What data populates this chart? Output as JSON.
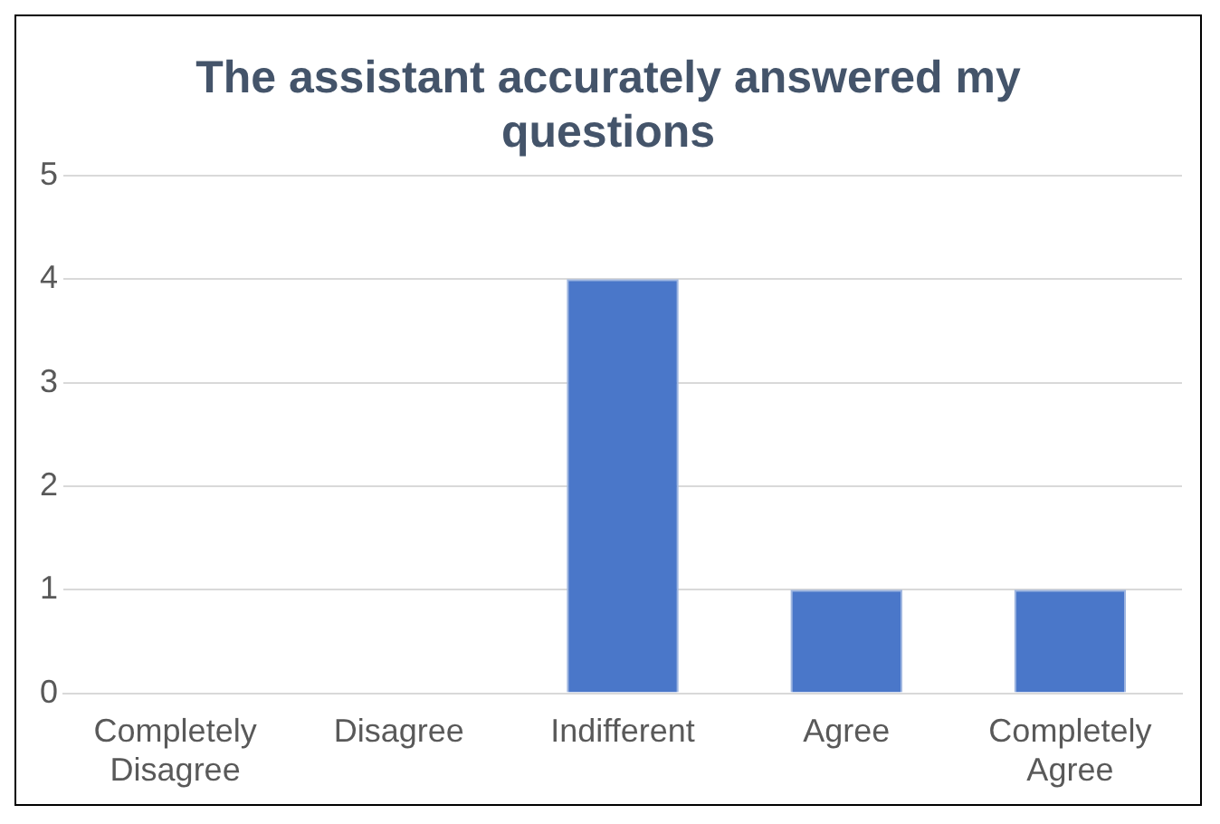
{
  "chart_data": {
    "type": "bar",
    "title": "The assistant accurately answered my questions",
    "categories": [
      "Completely Disagree",
      "Disagree",
      "Indifferent",
      "Agree",
      "Completely Agree"
    ],
    "values": [
      0,
      0,
      4,
      1,
      1
    ],
    "color": "#4a77c9",
    "ylim": [
      0,
      5
    ],
    "yticks": [
      0,
      1,
      2,
      3,
      4,
      5
    ],
    "grid": "y"
  }
}
